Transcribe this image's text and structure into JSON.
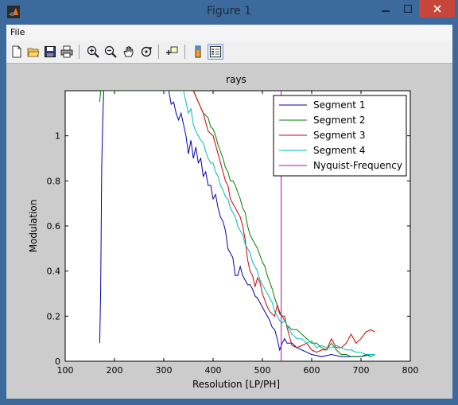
{
  "window": {
    "title": "Figure 1"
  },
  "menu": {
    "items": [
      "File"
    ]
  },
  "toolbar": {
    "buttons": [
      {
        "name": "new-figure-icon"
      },
      {
        "name": "open-file-icon"
      },
      {
        "name": "save-figure-icon"
      },
      {
        "name": "print-figure-icon"
      },
      {
        "name": "zoom-in-icon"
      },
      {
        "name": "zoom-out-icon"
      },
      {
        "name": "pan-icon"
      },
      {
        "name": "rotate-3d-icon"
      },
      {
        "name": "data-cursor-icon"
      },
      {
        "name": "colorbar-icon"
      },
      {
        "name": "legend-icon"
      }
    ]
  },
  "chart_data": {
    "type": "line",
    "title": "rays",
    "xlabel": "Resolution [LP/PH]",
    "ylabel": "Modulation",
    "xlim": [
      100,
      800
    ],
    "ylim": [
      0,
      1.2
    ],
    "xticks": [
      "100",
      "200",
      "300",
      "400",
      "500",
      "600",
      "700",
      "800"
    ],
    "yticks": [
      "0",
      "0.2",
      "0.4",
      "0.6",
      "0.8",
      "1"
    ],
    "grid": false,
    "legend_position": "top-right",
    "series": [
      {
        "name": "Segment 1",
        "color": "#0000b0",
        "x": [
          170,
          172,
          174,
          176,
          178,
          290,
          300,
          310,
          315,
          320,
          325,
          330,
          335,
          340,
          345,
          350,
          355,
          360,
          365,
          370,
          375,
          380,
          385,
          390,
          395,
          400,
          405,
          410,
          415,
          420,
          425,
          430,
          435,
          440,
          445,
          450,
          455,
          460,
          465,
          470,
          475,
          480,
          485,
          490,
          495,
          500,
          505,
          510,
          515,
          520,
          525,
          530,
          535,
          540,
          545,
          550,
          560,
          570,
          580,
          590,
          600,
          620,
          640,
          660,
          680,
          700,
          720,
          728
        ],
        "y": [
          0.08,
          0.31,
          0.86,
          1.05,
          1.2,
          1.2,
          1.2,
          1.2,
          1.14,
          1.15,
          1.1,
          1.07,
          1.1,
          1.05,
          1.0,
          0.92,
          0.98,
          0.9,
          0.95,
          0.88,
          0.9,
          0.82,
          0.84,
          0.78,
          0.78,
          0.72,
          0.74,
          0.68,
          0.64,
          0.62,
          0.58,
          0.5,
          0.48,
          0.46,
          0.38,
          0.38,
          0.42,
          0.38,
          0.36,
          0.34,
          0.34,
          0.32,
          0.29,
          0.28,
          0.26,
          0.24,
          0.22,
          0.2,
          0.18,
          0.15,
          0.14,
          0.1,
          0.05,
          0.08,
          0.1,
          0.08,
          0.08,
          0.06,
          0.05,
          0.04,
          0.03,
          0.02,
          0.03,
          0.02,
          0.02,
          0.02,
          0.03,
          0.03
        ]
      },
      {
        "name": "Segment 2",
        "color": "#008000",
        "x": [
          170,
          172,
          174,
          176,
          178,
          360,
          370,
          380,
          390,
          395,
          400,
          405,
          410,
          415,
          420,
          425,
          430,
          435,
          440,
          445,
          450,
          455,
          460,
          465,
          470,
          475,
          480,
          485,
          490,
          495,
          500,
          505,
          510,
          515,
          520,
          525,
          530,
          535,
          540,
          545,
          550,
          555,
          560,
          570,
          580,
          590,
          600,
          610,
          620,
          630,
          640,
          650,
          660,
          670,
          680,
          690,
          700,
          710,
          720,
          728
        ],
        "y": [
          1.15,
          1.2,
          1.2,
          1.2,
          1.2,
          1.2,
          1.15,
          1.1,
          1.08,
          1.04,
          1.03,
          1.0,
          0.96,
          0.93,
          0.9,
          0.86,
          0.84,
          0.8,
          0.8,
          0.78,
          0.75,
          0.72,
          0.68,
          0.66,
          0.6,
          0.56,
          0.54,
          0.52,
          0.5,
          0.47,
          0.44,
          0.42,
          0.38,
          0.35,
          0.32,
          0.28,
          0.25,
          0.22,
          0.2,
          0.18,
          0.16,
          0.15,
          0.14,
          0.14,
          0.12,
          0.1,
          0.08,
          0.08,
          0.06,
          0.05,
          0.08,
          0.05,
          0.03,
          0.03,
          0.02,
          0.02,
          0.02,
          0.03,
          0.02,
          0.03
        ]
      },
      {
        "name": "Segment 3",
        "color": "#d00000",
        "x": [
          360,
          370,
          380,
          390,
          400,
          405,
          410,
          415,
          420,
          425,
          430,
          435,
          440,
          445,
          450,
          455,
          460,
          465,
          470,
          475,
          480,
          485,
          490,
          495,
          500,
          505,
          510,
          515,
          520,
          525,
          530,
          535,
          540,
          545,
          550,
          560,
          570,
          580,
          590,
          600,
          610,
          620,
          630,
          640,
          650,
          660,
          670,
          680,
          690,
          700,
          710,
          720,
          728
        ],
        "y": [
          1.2,
          1.15,
          1.1,
          1.02,
          1.0,
          0.96,
          0.92,
          0.88,
          0.84,
          0.8,
          0.78,
          0.72,
          0.7,
          0.68,
          0.66,
          0.64,
          0.6,
          0.54,
          0.45,
          0.4,
          0.38,
          0.33,
          0.37,
          0.35,
          0.3,
          0.27,
          0.24,
          0.22,
          0.21,
          0.2,
          0.25,
          0.21,
          0.2,
          0.2,
          0.15,
          0.07,
          0.06,
          0.07,
          0.08,
          0.05,
          0.04,
          0.05,
          0.05,
          0.1,
          0.06,
          0.06,
          0.08,
          0.12,
          0.08,
          0.1,
          0.13,
          0.14,
          0.13
        ]
      },
      {
        "name": "Segment 4",
        "color": "#00bcbc",
        "x": [
          340,
          345,
          350,
          355,
          360,
          365,
          370,
          375,
          380,
          385,
          390,
          395,
          400,
          405,
          410,
          415,
          420,
          425,
          430,
          435,
          440,
          445,
          450,
          455,
          460,
          465,
          470,
          475,
          480,
          485,
          490,
          495,
          500,
          505,
          510,
          515,
          520,
          525,
          530,
          535,
          540,
          545,
          550,
          560,
          570,
          580,
          590,
          600,
          610,
          620,
          630,
          640,
          650,
          660,
          670,
          680,
          690,
          700,
          710,
          720,
          728
        ],
        "y": [
          1.2,
          1.15,
          1.1,
          1.12,
          1.05,
          1.02,
          1.0,
          0.98,
          0.97,
          0.93,
          0.9,
          0.88,
          0.88,
          0.84,
          0.82,
          0.78,
          0.76,
          0.73,
          0.72,
          0.68,
          0.66,
          0.64,
          0.6,
          0.58,
          0.56,
          0.52,
          0.5,
          0.48,
          0.44,
          0.42,
          0.4,
          0.36,
          0.34,
          0.32,
          0.3,
          0.28,
          0.26,
          0.22,
          0.2,
          0.18,
          0.17,
          0.18,
          0.16,
          0.12,
          0.1,
          0.1,
          0.08,
          0.09,
          0.06,
          0.07,
          0.06,
          0.06,
          0.07,
          0.06,
          0.05,
          0.05,
          0.04,
          0.04,
          0.03,
          0.03,
          0.03
        ]
      },
      {
        "name": "Nyquist-Frequency",
        "color": "#c000c0",
        "x": [
          538,
          538
        ],
        "y": [
          0,
          1.2
        ]
      }
    ]
  }
}
